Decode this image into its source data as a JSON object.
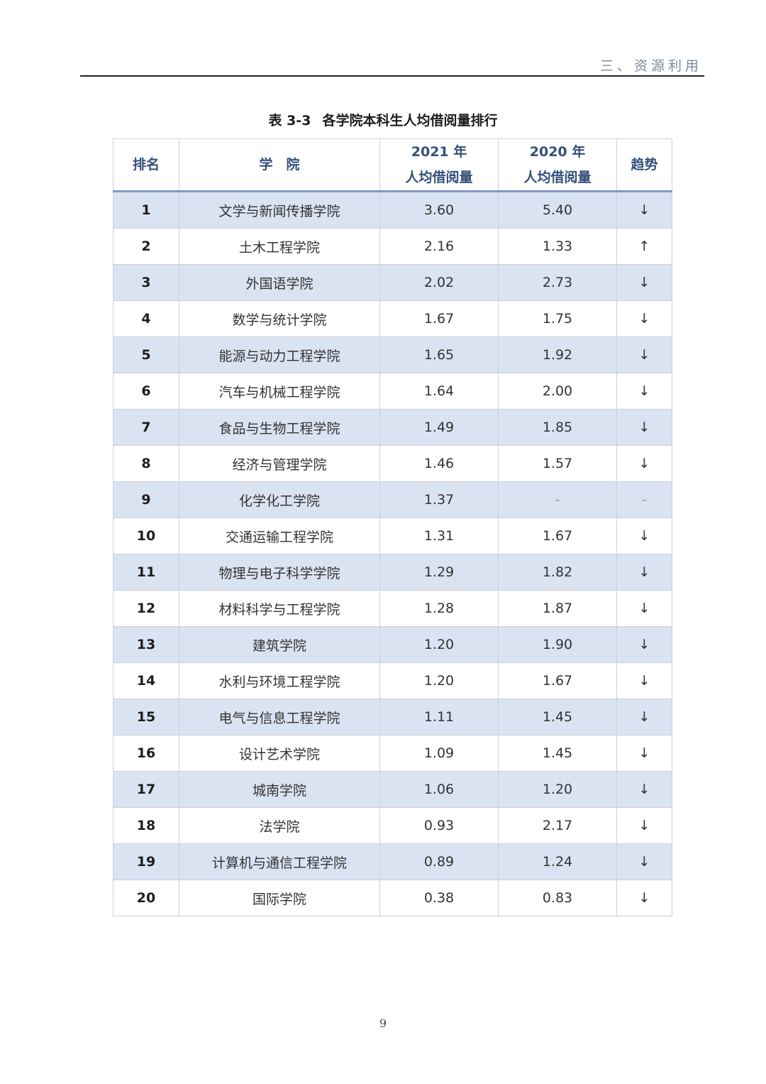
{
  "running_header": "三、资源利用",
  "caption": {
    "number": "表 3-3",
    "title": "各学院本科生人均借阅量排行"
  },
  "table": {
    "headers": {
      "rank": "排名",
      "college": "学　院",
      "y2021_line1": "2021 年",
      "y2021_line2": "人均借阅量",
      "y2020_line1": "2020 年",
      "y2020_line2": "人均借阅量",
      "trend": "趋势"
    },
    "rows": [
      {
        "rank": "1",
        "college": "文学与新闻传播学院",
        "y2021": "3.60",
        "y2020": "5.40",
        "trend": "↓"
      },
      {
        "rank": "2",
        "college": "土木工程学院",
        "y2021": "2.16",
        "y2020": "1.33",
        "trend": "↑"
      },
      {
        "rank": "3",
        "college": "外国语学院",
        "y2021": "2.02",
        "y2020": "2.73",
        "trend": "↓"
      },
      {
        "rank": "4",
        "college": "数学与统计学院",
        "y2021": "1.67",
        "y2020": "1.75",
        "trend": "↓"
      },
      {
        "rank": "5",
        "college": "能源与动力工程学院",
        "y2021": "1.65",
        "y2020": "1.92",
        "trend": "↓"
      },
      {
        "rank": "6",
        "college": "汽车与机械工程学院",
        "y2021": "1.64",
        "y2020": "2.00",
        "trend": "↓"
      },
      {
        "rank": "7",
        "college": "食品与生物工程学院",
        "y2021": "1.49",
        "y2020": "1.85",
        "trend": "↓"
      },
      {
        "rank": "8",
        "college": "经济与管理学院",
        "y2021": "1.46",
        "y2020": "1.57",
        "trend": "↓"
      },
      {
        "rank": "9",
        "college": "化学化工学院",
        "y2021": "1.37",
        "y2020": "-",
        "trend": "-"
      },
      {
        "rank": "10",
        "college": "交通运输工程学院",
        "y2021": "1.31",
        "y2020": "1.67",
        "trend": "↓"
      },
      {
        "rank": "11",
        "college": "物理与电子科学学院",
        "y2021": "1.29",
        "y2020": "1.82",
        "trend": "↓"
      },
      {
        "rank": "12",
        "college": "材料科学与工程学院",
        "y2021": "1.28",
        "y2020": "1.87",
        "trend": "↓"
      },
      {
        "rank": "13",
        "college": "建筑学院",
        "y2021": "1.20",
        "y2020": "1.90",
        "trend": "↓"
      },
      {
        "rank": "14",
        "college": "水利与环境工程学院",
        "y2021": "1.20",
        "y2020": "1.67",
        "trend": "↓"
      },
      {
        "rank": "15",
        "college": "电气与信息工程学院",
        "y2021": "1.11",
        "y2020": "1.45",
        "trend": "↓"
      },
      {
        "rank": "16",
        "college": "设计艺术学院",
        "y2021": "1.09",
        "y2020": "1.45",
        "trend": "↓"
      },
      {
        "rank": "17",
        "college": "城南学院",
        "y2021": "1.06",
        "y2020": "1.20",
        "trend": "↓"
      },
      {
        "rank": "18",
        "college": "法学院",
        "y2021": "0.93",
        "y2020": "2.17",
        "trend": "↓"
      },
      {
        "rank": "19",
        "college": "计算机与通信工程学院",
        "y2021": "0.89",
        "y2020": "1.24",
        "trend": "↓"
      },
      {
        "rank": "20",
        "college": "国际学院",
        "y2021": "0.38",
        "y2020": "0.83",
        "trend": "↓"
      }
    ]
  },
  "page_number": "9",
  "colors": {
    "header_text": "#34507a",
    "band_row": "#dae3f2",
    "header_rule": "#7d98c3"
  }
}
